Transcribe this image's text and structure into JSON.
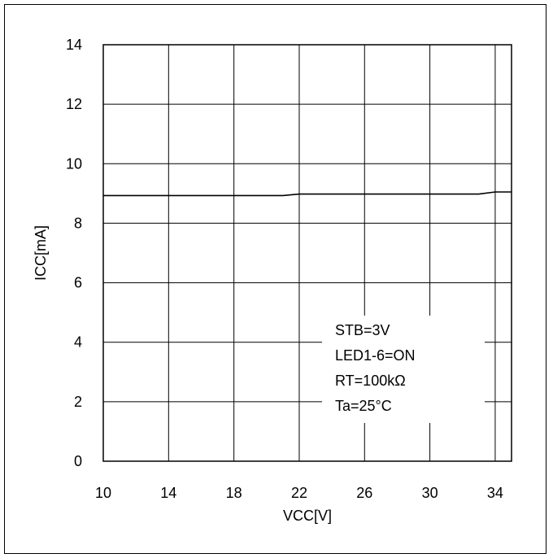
{
  "chart_data": {
    "type": "line",
    "title": "",
    "xlabel": "VCC[V]",
    "ylabel": "ICC[mA]",
    "xlim": [
      10,
      35
    ],
    "ylim": [
      0,
      14
    ],
    "xticks": [
      10,
      14,
      18,
      22,
      26,
      30,
      34
    ],
    "yticks": [
      0,
      2,
      4,
      6,
      8,
      10,
      12,
      14
    ],
    "grid": true,
    "series": [
      {
        "x": [
          10,
          14,
          18,
          21,
          22,
          26,
          30,
          33,
          34,
          35
        ],
        "y": [
          8.93,
          8.93,
          8.93,
          8.93,
          8.98,
          8.98,
          8.98,
          8.98,
          9.05,
          9.05
        ]
      }
    ],
    "annotations": [
      "STB=3V",
      "LED1-6=ON",
      "RT=100kΩ",
      "Ta=25°C"
    ]
  }
}
